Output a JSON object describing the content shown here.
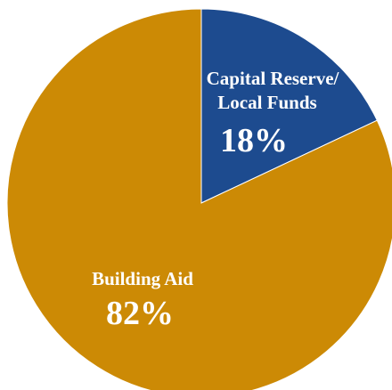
{
  "chart_data": {
    "type": "pie",
    "title": "",
    "slices": [
      {
        "label_lines": [
          "Capital Reserve/",
          "Local Funds"
        ],
        "value": 18,
        "value_label": "18%",
        "color": "#1d4b8f"
      },
      {
        "label_lines": [
          "Building Aid"
        ],
        "value": 82,
        "value_label": "82%",
        "color": "#cc8a05"
      }
    ],
    "start_angle": "12 o'clock",
    "direction": "clockwise",
    "legend": "none"
  }
}
